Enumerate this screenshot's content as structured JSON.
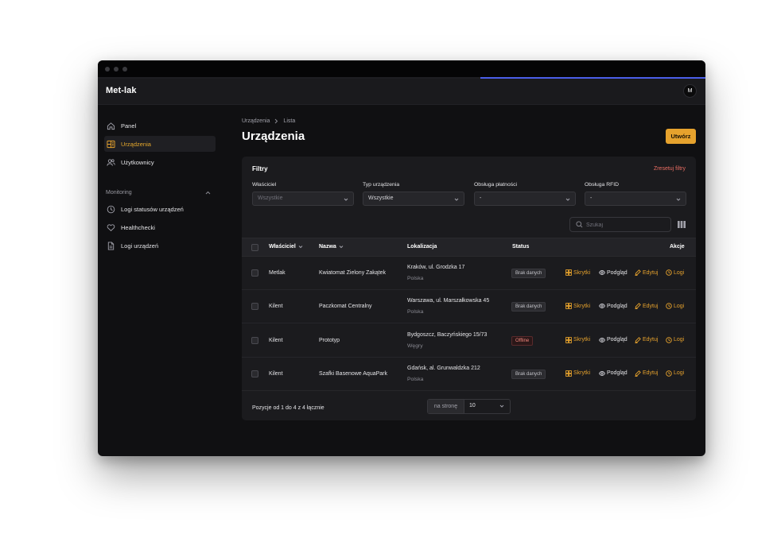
{
  "app": {
    "brand": "Met-lak",
    "avatar_initial": "M"
  },
  "colors": {
    "accent": "#e6a22d",
    "danger": "#e96d62",
    "progress": "#4a5ee8"
  },
  "sidebar": {
    "items": [
      {
        "label": "Panel",
        "icon": "home-icon"
      },
      {
        "label": "Urządzenia",
        "icon": "device-grid-icon",
        "active": true
      },
      {
        "label": "Użytkownicy",
        "icon": "users-icon"
      }
    ],
    "group_label": "Monitoring",
    "monitoring_items": [
      {
        "label": "Logi statusów urządzeń",
        "icon": "clock-icon"
      },
      {
        "label": "Healthchecki",
        "icon": "heart-icon"
      },
      {
        "label": "Logi urządzeń",
        "icon": "document-icon"
      }
    ]
  },
  "breadcrumb": {
    "parent": "Urządzenia",
    "current": "Lista"
  },
  "page": {
    "title": "Urządzenia",
    "create_label": "Utwórz"
  },
  "filters": {
    "title": "Filtry",
    "reset_label": "Zresetuj filtry",
    "fields": [
      {
        "label": "Właściciel",
        "value": "Wszystkie"
      },
      {
        "label": "Typ urządzenia",
        "value": "Wszystkie"
      },
      {
        "label": "Obsługa płatności",
        "value": "-"
      },
      {
        "label": "Obsługa RFID",
        "value": "-"
      }
    ]
  },
  "search": {
    "placeholder": "Szukaj"
  },
  "table": {
    "columns": [
      "Właściciel",
      "Nazwa",
      "Lokalizacja",
      "Status",
      "Akcje"
    ],
    "actions": [
      "Skrytki",
      "Podgląd",
      "Edytuj",
      "Logi"
    ],
    "rows": [
      {
        "owner": "Metlak",
        "name": "Kwiatomat Zielony Zakątek",
        "address": "Kraków, ul. Grodzka 17",
        "country": "Polska",
        "status": "Brak danych"
      },
      {
        "owner": "Kilent",
        "name": "Paczkomat Centralny",
        "address": "Warszawa, ul. Marszałkowska 45",
        "country": "Polska",
        "status": "Brak danych"
      },
      {
        "owner": "Kilent",
        "name": "Prototyp",
        "address": "Bydgoszcz, Baczyńskiego 15/73",
        "country": "Węgry",
        "status": "Offline"
      },
      {
        "owner": "Kilent",
        "name": "Szafki Basenowe AquaPark",
        "address": "Gdańsk, al. Grunwaldzka 212",
        "country": "Polska",
        "status": "Brak danych"
      }
    ]
  },
  "pagination": {
    "summary": "Pozycje od 1 do 4 z 4 łącznie",
    "per_page_label": "na stronę",
    "per_page_value": "10"
  }
}
